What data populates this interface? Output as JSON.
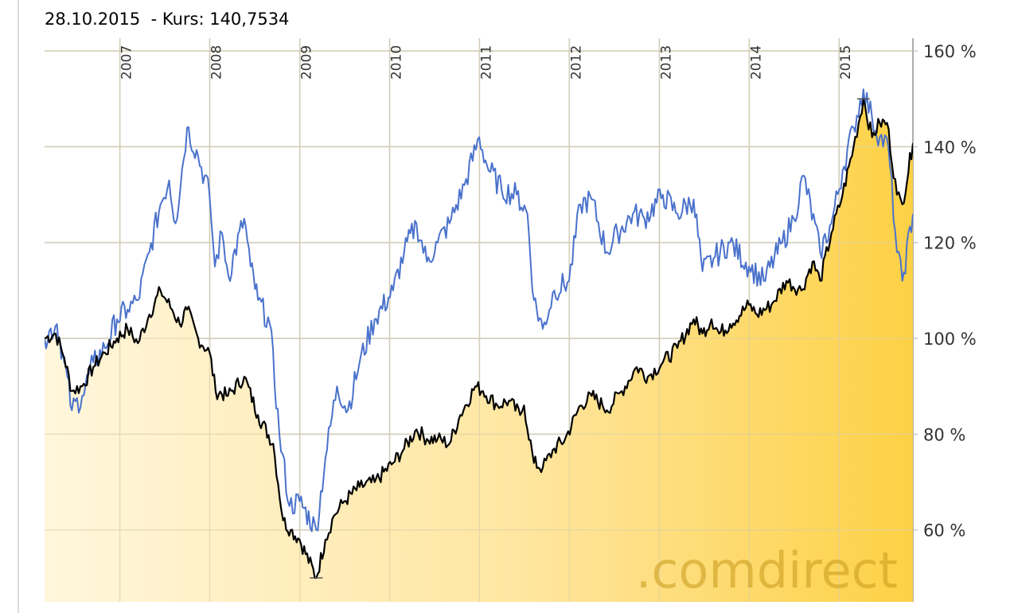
{
  "header": {
    "date": "28.10.2015",
    "price_text": "  - Kurs: 140,7534"
  },
  "watermark": ".comdirect",
  "footer_text": "",
  "colors": {
    "fund_line": "#000000",
    "benchmark_line": "#4a72cc",
    "area_light": "#fff4d6",
    "area_dark": "#fdd145",
    "grid": "#cccccc"
  },
  "chart_data": {
    "type": "line",
    "title": "",
    "xlabel": "",
    "ylabel": "",
    "x_range": [
      "2006-03-01",
      "2015-10-28"
    ],
    "ylim": [
      45,
      160
    ],
    "y_ticks": [
      60,
      80,
      100,
      120,
      140,
      160
    ],
    "y_tick_labels": [
      "60 %",
      "80 %",
      "100 %",
      "120 %",
      "140 %",
      "160 %"
    ],
    "x_ticks": [
      "2007",
      "2008",
      "2009",
      "2010",
      "2011",
      "2012",
      "2013",
      "2014",
      "2015"
    ],
    "x_tick_dates": [
      "2007-01-01",
      "2008-01-01",
      "2009-01-01",
      "2010-01-01",
      "2011-01-01",
      "2012-01-01",
      "2013-01-01",
      "2014-01-01",
      "2015-01-01"
    ],
    "grid": true,
    "series": [
      {
        "points": [
          [
            "2006-03-01",
            100
          ],
          [
            "2006-04-15",
            101
          ],
          [
            "2006-05-20",
            96
          ],
          [
            "2006-06-20",
            89
          ],
          [
            "2006-08-01",
            90
          ],
          [
            "2006-09-15",
            94
          ],
          [
            "2006-11-01",
            97
          ],
          [
            "2006-12-20",
            100
          ],
          [
            "2007-02-01",
            102
          ],
          [
            "2007-03-15",
            99
          ],
          [
            "2007-05-01",
            105
          ],
          [
            "2007-06-15",
            110
          ],
          [
            "2007-08-01",
            106
          ],
          [
            "2007-09-01",
            103
          ],
          [
            "2007-10-01",
            106
          ],
          [
            "2007-11-15",
            100
          ],
          [
            "2008-01-01",
            97
          ],
          [
            "2008-01-25",
            89
          ],
          [
            "2008-03-15",
            88
          ],
          [
            "2008-05-20",
            92
          ],
          [
            "2008-07-15",
            84
          ],
          [
            "2008-09-15",
            78
          ],
          [
            "2008-10-25",
            62
          ],
          [
            "2008-11-25",
            60
          ],
          [
            "2008-12-31",
            58
          ],
          [
            "2009-03-09",
            50
          ],
          [
            "2009-04-15",
            58
          ],
          [
            "2009-05-20",
            63
          ],
          [
            "2009-07-01",
            66
          ],
          [
            "2009-09-01",
            69
          ],
          [
            "2009-11-01",
            70
          ],
          [
            "2010-01-15",
            74
          ],
          [
            "2010-03-01",
            77
          ],
          [
            "2010-04-20",
            81
          ],
          [
            "2010-06-01",
            79
          ],
          [
            "2010-07-15",
            79
          ],
          [
            "2010-09-01",
            78
          ],
          [
            "2010-10-15",
            84
          ],
          [
            "2010-12-15",
            90
          ],
          [
            "2011-01-15",
            89
          ],
          [
            "2011-03-15",
            86
          ],
          [
            "2011-05-01",
            87
          ],
          [
            "2011-06-15",
            84
          ],
          [
            "2011-07-01",
            86
          ],
          [
            "2011-08-10",
            74
          ],
          [
            "2011-09-15",
            73
          ],
          [
            "2011-11-01",
            77
          ],
          [
            "2011-12-15",
            79
          ],
          [
            "2012-02-15",
            86
          ],
          [
            "2012-04-01",
            88
          ],
          [
            "2012-05-15",
            86
          ],
          [
            "2012-06-01",
            85
          ],
          [
            "2012-08-01",
            89
          ],
          [
            "2012-10-01",
            94
          ],
          [
            "2012-11-15",
            92
          ],
          [
            "2013-01-15",
            95
          ],
          [
            "2013-03-15",
            98
          ],
          [
            "2013-05-20",
            104
          ],
          [
            "2013-06-25",
            101
          ],
          [
            "2013-08-01",
            104
          ],
          [
            "2013-09-01",
            101
          ],
          [
            "2013-10-15",
            103
          ],
          [
            "2013-12-31",
            107
          ],
          [
            "2014-02-01",
            105
          ],
          [
            "2014-04-01",
            107
          ],
          [
            "2014-06-01",
            112
          ],
          [
            "2014-08-01",
            110
          ],
          [
            "2014-09-15",
            116
          ],
          [
            "2014-10-16",
            112
          ],
          [
            "2014-12-01",
            122
          ],
          [
            "2015-01-15",
            130
          ],
          [
            "2015-03-01",
            140
          ],
          [
            "2015-04-10",
            150
          ],
          [
            "2015-05-15",
            142
          ],
          [
            "2015-06-15",
            145
          ],
          [
            "2015-07-15",
            145
          ],
          [
            "2015-08-24",
            130
          ],
          [
            "2015-09-15",
            128
          ],
          [
            "2015-10-28",
            140.7534
          ]
        ]
      },
      {
        "points": [
          [
            "2006-03-01",
            100
          ],
          [
            "2006-04-20",
            103
          ],
          [
            "2006-05-20",
            95
          ],
          [
            "2006-06-20",
            85
          ],
          [
            "2006-08-01",
            88
          ],
          [
            "2006-09-15",
            95
          ],
          [
            "2006-11-01",
            98
          ],
          [
            "2006-12-20",
            104
          ],
          [
            "2007-02-01",
            106
          ],
          [
            "2007-03-15",
            108
          ],
          [
            "2007-05-01",
            118
          ],
          [
            "2007-06-15",
            128
          ],
          [
            "2007-07-20",
            133
          ],
          [
            "2007-08-15",
            124
          ],
          [
            "2007-10-01",
            144
          ],
          [
            "2007-11-15",
            138
          ],
          [
            "2007-12-31",
            130
          ],
          [
            "2008-01-22",
            115
          ],
          [
            "2008-02-20",
            122
          ],
          [
            "2008-03-17",
            113
          ],
          [
            "2008-05-20",
            125
          ],
          [
            "2008-06-15",
            115
          ],
          [
            "2008-07-15",
            108
          ],
          [
            "2008-09-01",
            103
          ],
          [
            "2008-10-10",
            80
          ],
          [
            "2008-11-20",
            65
          ],
          [
            "2008-12-31",
            66
          ],
          [
            "2009-03-09",
            60
          ],
          [
            "2009-04-15",
            75
          ],
          [
            "2009-06-01",
            90
          ],
          [
            "2009-07-15",
            85
          ],
          [
            "2009-09-01",
            95
          ],
          [
            "2009-11-01",
            104
          ],
          [
            "2010-01-15",
            110
          ],
          [
            "2010-03-01",
            118
          ],
          [
            "2010-04-20",
            124
          ],
          [
            "2010-06-01",
            116
          ],
          [
            "2010-07-15",
            120
          ],
          [
            "2010-09-01",
            124
          ],
          [
            "2010-11-01",
            132
          ],
          [
            "2010-12-31",
            142
          ],
          [
            "2011-02-01",
            136
          ],
          [
            "2011-04-01",
            131
          ],
          [
            "2011-06-01",
            130
          ],
          [
            "2011-07-15",
            126
          ],
          [
            "2011-08-10",
            108
          ],
          [
            "2011-09-15",
            102
          ],
          [
            "2011-11-01",
            110
          ],
          [
            "2011-12-31",
            112
          ],
          [
            "2012-02-15",
            128
          ],
          [
            "2012-04-01",
            129
          ],
          [
            "2012-06-01",
            118
          ],
          [
            "2012-07-15",
            122
          ],
          [
            "2012-09-15",
            126
          ],
          [
            "2012-11-01",
            125
          ],
          [
            "2013-01-15",
            130
          ],
          [
            "2013-03-15",
            126
          ],
          [
            "2013-05-20",
            129
          ],
          [
            "2013-06-25",
            114
          ],
          [
            "2013-08-15",
            117
          ],
          [
            "2013-10-15",
            120
          ],
          [
            "2013-12-31",
            115
          ],
          [
            "2014-03-01",
            112
          ],
          [
            "2014-05-15",
            120
          ],
          [
            "2014-07-01",
            125
          ],
          [
            "2014-08-10",
            134
          ],
          [
            "2014-10-16",
            118
          ],
          [
            "2014-12-01",
            124
          ],
          [
            "2015-01-15",
            135
          ],
          [
            "2015-03-01",
            144
          ],
          [
            "2015-04-10",
            152
          ],
          [
            "2015-05-15",
            146
          ],
          [
            "2015-06-15",
            142
          ],
          [
            "2015-07-20",
            140
          ],
          [
            "2015-08-24",
            118
          ],
          [
            "2015-09-15",
            112
          ],
          [
            "2015-10-28",
            126
          ]
        ]
      }
    ]
  }
}
